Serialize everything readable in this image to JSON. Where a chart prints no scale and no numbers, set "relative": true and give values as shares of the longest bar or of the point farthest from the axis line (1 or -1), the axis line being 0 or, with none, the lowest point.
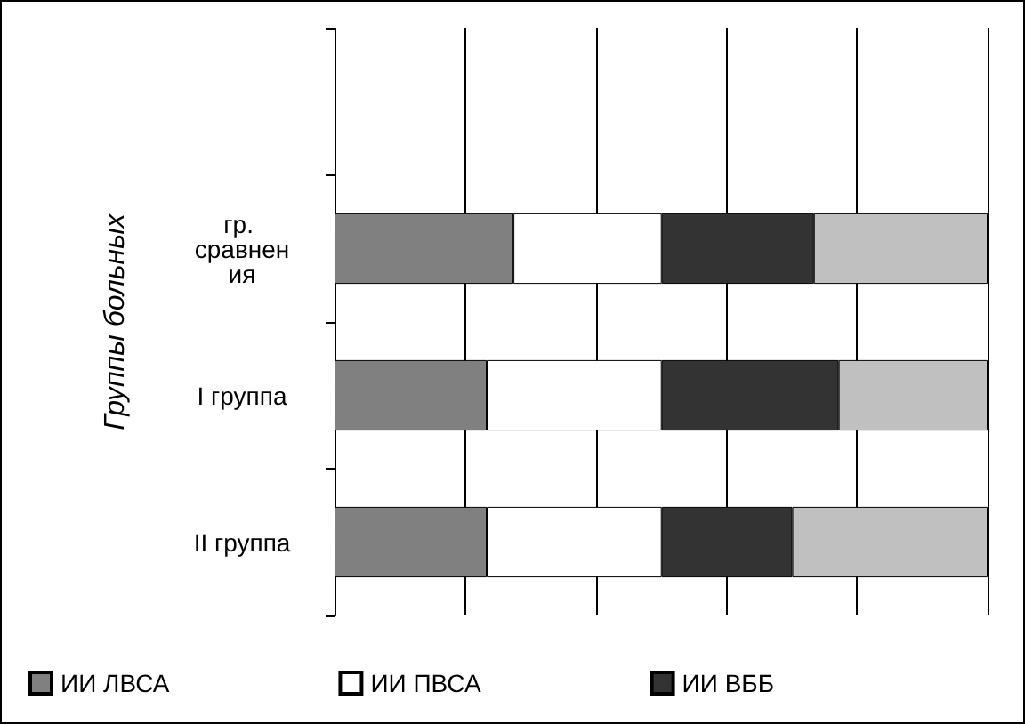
{
  "chart_data": {
    "type": "bar",
    "orientation": "horizontal",
    "stacked": true,
    "relative": true,
    "ylabel": "Группы больных",
    "categories": [
      null,
      "гр. сравнения",
      "I группа",
      "II группа"
    ],
    "series": [
      {
        "name": "ИИ ЛВСА",
        "color": "#808080",
        "values": [
          null,
          0.274,
          0.233,
          0.233
        ]
      },
      {
        "name": "ИИ ПВСА",
        "color": "#ffffff",
        "values": [
          null,
          0.227,
          0.268,
          0.268
        ]
      },
      {
        "name": "ИИ ВББ",
        "color": "#333333",
        "values": [
          null,
          0.233,
          0.271,
          0.2
        ]
      },
      {
        "color": "#c0c0c0",
        "values": [
          null,
          0.266,
          0.228,
          0.299
        ]
      }
    ],
    "grid": "x",
    "legend": "bottom"
  }
}
